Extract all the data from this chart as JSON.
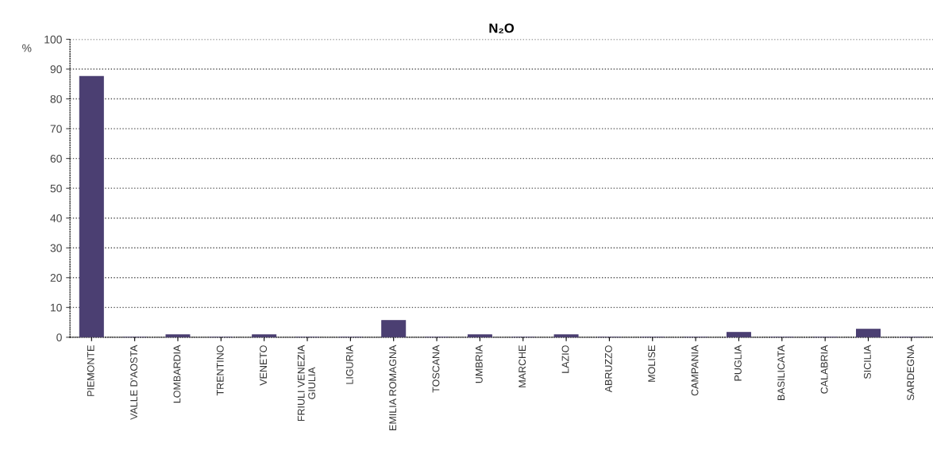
{
  "chart_data": {
    "type": "bar",
    "title": "N₂O",
    "ylabel": "%",
    "categories": [
      "PIEMONTE",
      "VALLE D'AOSTA",
      "LOMBARDIA",
      "TRENTINO",
      "VENETO",
      "FRIULI VENEZIA\nGIULIA",
      "LIGURIA",
      "EMILIA ROMAGNA",
      "TOSCANA",
      "UMBRIA",
      "MARCHE",
      "LAZIO",
      "ABRUZZO",
      "MOLISE",
      "CAMPANIA",
      "PUGLIA",
      "BASILICATA",
      "CALABRIA",
      "SICILIA",
      "SARDEGNA"
    ],
    "values": [
      87.5,
      0,
      0.8,
      0,
      0.8,
      0,
      0,
      5.6,
      0,
      0.8,
      0,
      0.8,
      0,
      0,
      0,
      1.6,
      0,
      0,
      2.7,
      0
    ],
    "color": "#4b3f72",
    "ylim": [
      0,
      100
    ],
    "yticks": [
      0,
      10,
      20,
      30,
      40,
      50,
      60,
      70,
      80,
      90,
      100
    ],
    "grid": "y"
  }
}
